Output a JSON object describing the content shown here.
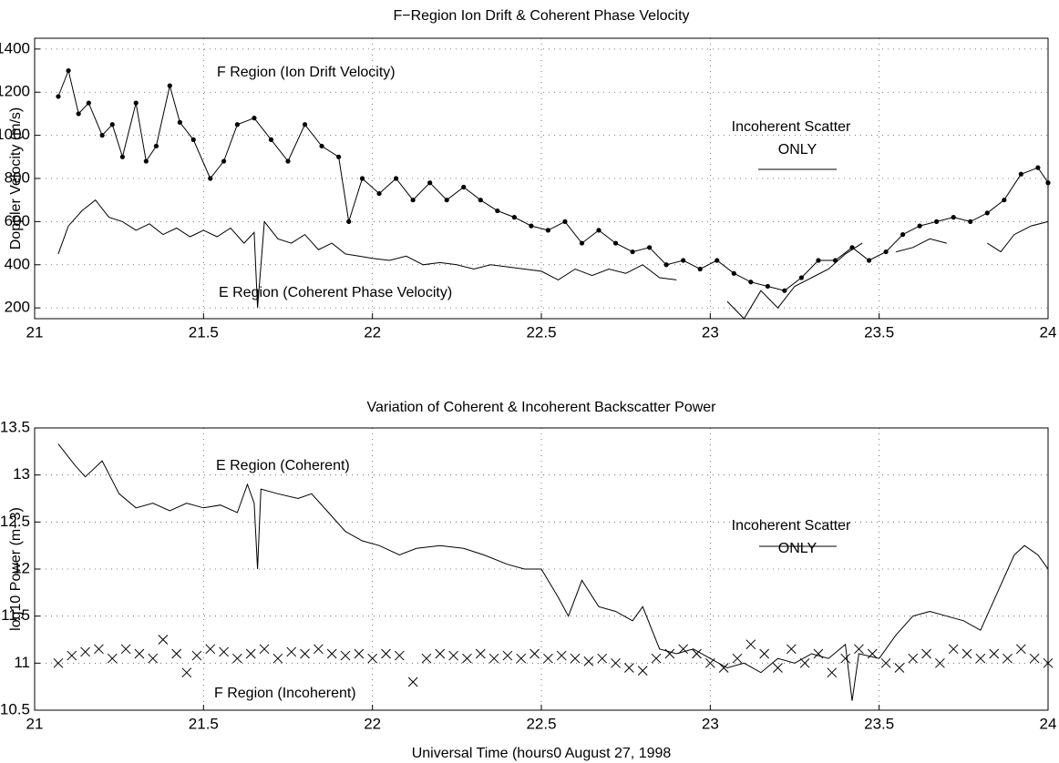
{
  "chart_data": [
    {
      "type": "line",
      "title": "F−Region Ion Drift & Coherent Phase Velocity",
      "y_label": "Doppler Velocity (m/s)",
      "xlim": [
        21,
        24
      ],
      "xticks": [
        21,
        21.5,
        22,
        22.5,
        23,
        23.5,
        24
      ],
      "ylim": [
        150,
        1450
      ],
      "yticks": [
        200,
        400,
        600,
        800,
        1000,
        1200,
        1400
      ],
      "grid": true,
      "annotations": [
        "F Region (Ion Drift Velocity)",
        "E Region (Coherent Phase Velocity)",
        "Incoherent Scatter",
        "ONLY"
      ],
      "series": [
        {
          "color": "#000000",
          "marker": "dot",
          "x": [
            21.07,
            21.1,
            21.13,
            21.16,
            21.2,
            21.23,
            21.26,
            21.3,
            21.33,
            21.36,
            21.4,
            21.43,
            21.47,
            21.52,
            21.56,
            21.6,
            21.65,
            21.7,
            21.75,
            21.8,
            21.85,
            21.9,
            21.93,
            21.97,
            22.02,
            22.07,
            22.12,
            22.17,
            22.22,
            22.27,
            22.32,
            22.37,
            22.42,
            22.47,
            22.52,
            22.57,
            22.62,
            22.67,
            22.72,
            22.77,
            22.82,
            22.87,
            22.92,
            22.97,
            23.02,
            23.07,
            23.12,
            23.17,
            23.22,
            23.27,
            23.32,
            23.37,
            23.42,
            23.47,
            23.52,
            23.57,
            23.62,
            23.67,
            23.72,
            23.77,
            23.82,
            23.87,
            23.92,
            23.97,
            24.0
          ],
          "values": [
            1180,
            1300,
            1100,
            1150,
            1000,
            1050,
            900,
            1150,
            880,
            950,
            1230,
            1060,
            980,
            800,
            880,
            1050,
            1080,
            980,
            880,
            1050,
            950,
            900,
            600,
            800,
            730,
            800,
            700,
            780,
            700,
            760,
            700,
            650,
            620,
            580,
            560,
            600,
            500,
            560,
            500,
            460,
            480,
            400,
            420,
            380,
            420,
            360,
            320,
            300,
            280,
            340,
            420,
            420,
            480,
            420,
            460,
            540,
            580,
            600,
            620,
            600,
            640,
            700,
            820,
            850,
            780
          ]
        },
        {
          "color": "#000000",
          "marker": "none",
          "x": [
            21.07,
            21.1,
            21.14,
            21.18,
            21.22,
            21.26,
            21.3,
            21.34,
            21.38,
            21.42,
            21.46,
            21.5,
            21.54,
            21.58,
            21.62,
            21.65,
            21.66,
            21.68,
            21.72,
            21.76,
            21.8,
            21.84,
            21.88,
            21.92,
            21.96,
            22.0,
            22.05,
            22.1,
            22.15,
            22.2,
            22.25,
            22.3,
            22.35,
            22.4,
            22.45,
            22.5,
            22.55,
            22.6,
            22.65,
            22.7,
            22.75,
            22.8,
            22.85,
            22.9,
            22.95,
            23.05,
            23.1,
            23.15,
            23.2,
            23.25,
            23.3,
            23.35,
            23.4,
            23.45,
            23.5,
            23.55,
            23.6,
            23.65,
            23.7,
            23.72,
            23.82,
            23.86,
            23.9,
            23.95,
            24.0
          ],
          "values": [
            450,
            580,
            650,
            700,
            620,
            600,
            560,
            590,
            540,
            570,
            530,
            560,
            530,
            570,
            500,
            550,
            200,
            600,
            520,
            500,
            540,
            470,
            500,
            450,
            440,
            430,
            420,
            440,
            400,
            410,
            400,
            380,
            400,
            390,
            380,
            370,
            330,
            380,
            350,
            380,
            360,
            400,
            340,
            330,
            null,
            230,
            150,
            280,
            200,
            300,
            340,
            380,
            450,
            500,
            null,
            460,
            480,
            520,
            500,
            null,
            500,
            460,
            540,
            580,
            600
          ]
        }
      ]
    },
    {
      "type": "line",
      "title": "Variation of Coherent & Incoherent Backscatter Power",
      "y_label": "log10 Power (m−3)",
      "x_label": "Universal Time (hours0  August 27, 1998",
      "xlim": [
        21,
        24
      ],
      "xticks": [
        21,
        21.5,
        22,
        22.5,
        23,
        23.5,
        24
      ],
      "ylim": [
        10.5,
        13.5
      ],
      "yticks": [
        10.5,
        11,
        11.5,
        12,
        12.5,
        13,
        13.5
      ],
      "grid": true,
      "annotations": [
        "E Region (Coherent)",
        "F Region (Incoherent)",
        "Incoherent Scatter",
        "ONLY"
      ],
      "series": [
        {
          "color": "#000000",
          "marker": "none",
          "x": [
            21.07,
            21.12,
            21.15,
            21.2,
            21.25,
            21.3,
            21.35,
            21.4,
            21.45,
            21.5,
            21.55,
            21.6,
            21.63,
            21.65,
            21.66,
            21.67,
            21.72,
            21.78,
            21.82,
            21.87,
            21.92,
            21.97,
            22.02,
            22.08,
            22.13,
            22.2,
            22.27,
            22.33,
            22.4,
            22.45,
            22.5,
            22.55,
            22.58,
            22.62,
            22.67,
            22.72,
            22.77,
            22.8,
            22.85,
            22.9,
            22.95,
            23.0,
            23.05,
            23.1,
            23.15,
            23.2,
            23.25,
            23.3,
            23.35,
            23.4,
            23.42,
            23.44,
            23.5,
            23.55,
            23.6,
            23.65,
            23.7,
            23.75,
            23.8,
            23.85,
            23.9,
            23.93,
            23.97,
            24.0
          ],
          "values": [
            13.33,
            13.1,
            12.98,
            13.15,
            12.8,
            12.65,
            12.7,
            12.62,
            12.7,
            12.65,
            12.68,
            12.6,
            12.9,
            12.7,
            12.0,
            12.85,
            12.8,
            12.75,
            12.8,
            12.6,
            12.4,
            12.3,
            12.25,
            12.15,
            12.22,
            12.25,
            12.22,
            12.15,
            12.05,
            12.0,
            12.0,
            11.7,
            11.5,
            11.88,
            11.6,
            11.55,
            11.45,
            11.6,
            11.15,
            11.1,
            11.15,
            11.05,
            10.95,
            11.0,
            10.9,
            11.05,
            11.0,
            11.1,
            11.05,
            11.2,
            10.6,
            11.1,
            11.05,
            11.3,
            11.5,
            11.55,
            11.5,
            11.45,
            11.35,
            11.75,
            12.15,
            12.25,
            12.15,
            12.0
          ]
        },
        {
          "color": "#000000",
          "marker": "x",
          "style": "scatter",
          "x": [
            21.07,
            21.11,
            21.15,
            21.19,
            21.23,
            21.27,
            21.31,
            21.35,
            21.38,
            21.42,
            21.45,
            21.48,
            21.52,
            21.56,
            21.6,
            21.64,
            21.68,
            21.72,
            21.76,
            21.8,
            21.84,
            21.88,
            21.92,
            21.96,
            22.0,
            22.04,
            22.08,
            22.12,
            22.16,
            22.2,
            22.24,
            22.28,
            22.32,
            22.36,
            22.4,
            22.44,
            22.48,
            22.52,
            22.56,
            22.6,
            22.64,
            22.68,
            22.72,
            22.76,
            22.8,
            22.84,
            22.88,
            22.92,
            22.96,
            23.0,
            23.04,
            23.08,
            23.12,
            23.16,
            23.2,
            23.24,
            23.28,
            23.32,
            23.36,
            23.4,
            23.44,
            23.48,
            23.52,
            23.56,
            23.6,
            23.64,
            23.68,
            23.72,
            23.76,
            23.8,
            23.84,
            23.88,
            23.92,
            23.96,
            24.0
          ],
          "values": [
            11.0,
            11.08,
            11.12,
            11.15,
            11.05,
            11.15,
            11.1,
            11.05,
            11.25,
            11.1,
            10.9,
            11.08,
            11.15,
            11.12,
            11.05,
            11.1,
            11.15,
            11.05,
            11.12,
            11.1,
            11.15,
            11.1,
            11.08,
            11.1,
            11.05,
            11.1,
            11.08,
            10.8,
            11.05,
            11.1,
            11.08,
            11.05,
            11.1,
            11.05,
            11.08,
            11.05,
            11.1,
            11.05,
            11.08,
            11.05,
            11.02,
            11.05,
            11.0,
            10.95,
            10.92,
            11.05,
            11.1,
            11.15,
            11.1,
            11.0,
            10.95,
            11.05,
            11.2,
            11.1,
            10.95,
            11.15,
            11.0,
            11.1,
            10.9,
            11.05,
            11.15,
            11.1,
            11.0,
            10.95,
            11.05,
            11.1,
            11.0,
            11.15,
            11.1,
            11.05,
            11.1,
            11.05,
            11.15,
            11.05,
            11.0
          ]
        }
      ]
    }
  ]
}
